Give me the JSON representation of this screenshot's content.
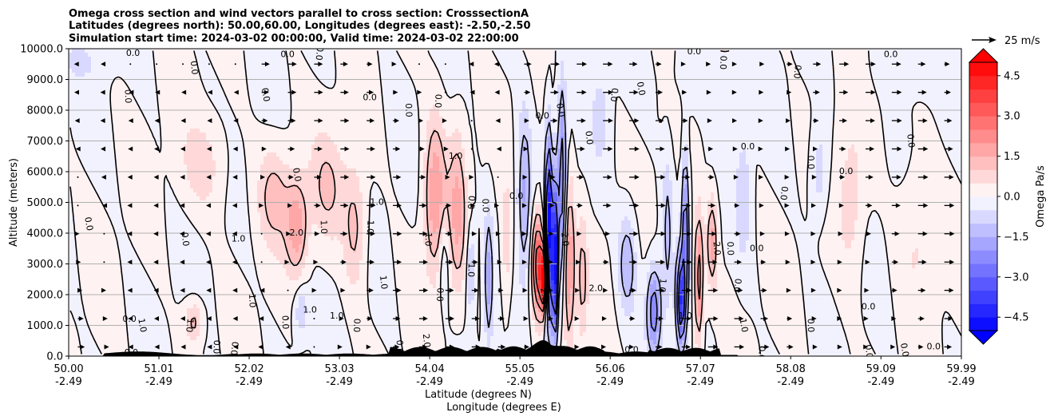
{
  "chart_data": {
    "type": "heatmap",
    "title_lines": [
      "Omega cross section and wind vectors parallel to cross section: CrosssectionA",
      "Latitudes (degrees north): 50.00,60.00, Longitudes (degrees east): -2.50,-2.50",
      "Simulation start time: 2024-03-02 00:00:00, Valid time: 2024-03-02 22:00:00"
    ],
    "ylabel": "Altitude (meters)",
    "xlabel_line1": "Latitude (degrees N)",
    "xlabel_line2": "Longitude (degrees E)",
    "xlim": [
      50.0,
      59.99
    ],
    "ylim": [
      0,
      10000
    ],
    "grid": "horizontal",
    "x_ticks": [
      {
        "lat": 50.0,
        "label1": "50.00",
        "label2": "-2.49"
      },
      {
        "lat": 51.01,
        "label1": "51.01",
        "label2": "-2.49"
      },
      {
        "lat": 52.02,
        "label1": "52.02",
        "label2": "-2.49"
      },
      {
        "lat": 53.03,
        "label1": "53.03",
        "label2": "-2.49"
      },
      {
        "lat": 54.04,
        "label1": "54.04",
        "label2": "-2.49"
      },
      {
        "lat": 55.05,
        "label1": "55.05",
        "label2": "-2.49"
      },
      {
        "lat": 56.06,
        "label1": "56.06",
        "label2": "-2.49"
      },
      {
        "lat": 57.07,
        "label1": "57.07",
        "label2": "-2.49"
      },
      {
        "lat": 58.08,
        "label1": "58.08",
        "label2": "-2.49"
      },
      {
        "lat": 59.09,
        "label1": "59.09",
        "label2": "-2.49"
      },
      {
        "lat": 59.99,
        "label1": "59.99",
        "label2": "-2.49"
      }
    ],
    "y_ticks": [
      {
        "value": 0,
        "label": "0.0"
      },
      {
        "value": 1000,
        "label": "1000.0"
      },
      {
        "value": 2000,
        "label": "2000.0"
      },
      {
        "value": 3000,
        "label": "3000.0"
      },
      {
        "value": 4000,
        "label": "4000.0"
      },
      {
        "value": 5000,
        "label": "5000.0"
      },
      {
        "value": 6000,
        "label": "6000.0"
      },
      {
        "value": 7000,
        "label": "7000.0"
      },
      {
        "value": 8000,
        "label": "8000.0"
      },
      {
        "value": 9000,
        "label": "9000.0"
      },
      {
        "value": 10000,
        "label": "10000.0"
      }
    ],
    "colorbar": {
      "label": "Omega Pa/s",
      "range": [
        -5,
        5
      ],
      "step": 0.5,
      "extend": "both",
      "cmap": "bwr",
      "ticks": [
        {
          "value": 4.5,
          "label": "4.5"
        },
        {
          "value": 3.0,
          "label": "3.0"
        },
        {
          "value": 1.5,
          "label": "1.5"
        },
        {
          "value": 0.0,
          "label": "0.0"
        },
        {
          "value": -1.5,
          "label": "−1.5"
        },
        {
          "value": -3.0,
          "label": "−3.0"
        },
        {
          "value": -4.5,
          "label": "−4.5"
        }
      ]
    },
    "quiver_key": {
      "label": "25 m/s",
      "speed": 25
    },
    "omega_features": [
      {
        "lat": 52.3,
        "alt": 5200,
        "value": 1.2,
        "lat_width": 0.18,
        "alt_width": 1600
      },
      {
        "lat": 52.55,
        "alt": 4200,
        "value": 1.8,
        "lat_width": 0.12,
        "alt_width": 1500
      },
      {
        "lat": 52.9,
        "alt": 5500,
        "value": 1.0,
        "lat_width": 0.2,
        "alt_width": 1800
      },
      {
        "lat": 51.5,
        "alt": 6200,
        "value": 0.8,
        "lat_width": 0.25,
        "alt_width": 1500
      },
      {
        "lat": 51.4,
        "alt": 1100,
        "value": 1.2,
        "lat_width": 0.1,
        "alt_width": 700
      },
      {
        "lat": 52.6,
        "alt": 1500,
        "value": -1.0,
        "lat_width": 0.08,
        "alt_width": 800
      },
      {
        "lat": 53.2,
        "alt": 4200,
        "value": 1.2,
        "lat_width": 0.12,
        "alt_width": 2000
      },
      {
        "lat": 54.1,
        "alt": 5200,
        "value": 2.0,
        "lat_width": 0.12,
        "alt_width": 2500
      },
      {
        "lat": 54.35,
        "alt": 4800,
        "value": 1.6,
        "lat_width": 0.1,
        "alt_width": 2500
      },
      {
        "lat": 54.2,
        "alt": 3200,
        "value": -0.9,
        "lat_width": 0.06,
        "alt_width": 1400
      },
      {
        "lat": 54.5,
        "alt": 2800,
        "value": -1.2,
        "lat_width": 0.05,
        "alt_width": 1500
      },
      {
        "lat": 54.7,
        "alt": 2500,
        "value": -1.7,
        "lat_width": 0.05,
        "alt_width": 2200
      },
      {
        "lat": 54.9,
        "alt": 3500,
        "value": 0.8,
        "lat_width": 0.06,
        "alt_width": 2200
      },
      {
        "lat": 55.1,
        "alt": 5200,
        "value": -1.6,
        "lat_width": 0.08,
        "alt_width": 2800
      },
      {
        "lat": 55.25,
        "alt": 3000,
        "value": 3.5,
        "lat_width": 0.07,
        "alt_width": 1600
      },
      {
        "lat": 55.32,
        "alt": 2500,
        "value": 4.8,
        "lat_width": 0.04,
        "alt_width": 1000
      },
      {
        "lat": 55.37,
        "alt": 4000,
        "value": -4.8,
        "lat_width": 0.04,
        "alt_width": 3000
      },
      {
        "lat": 55.44,
        "alt": 3000,
        "value": -5.0,
        "lat_width": 0.035,
        "alt_width": 2500
      },
      {
        "lat": 55.52,
        "alt": 5800,
        "value": -2.5,
        "lat_width": 0.05,
        "alt_width": 3000
      },
      {
        "lat": 55.6,
        "alt": 3000,
        "value": 2.2,
        "lat_width": 0.06,
        "alt_width": 2500
      },
      {
        "lat": 55.75,
        "alt": 2500,
        "value": 1.2,
        "lat_width": 0.06,
        "alt_width": 2000
      },
      {
        "lat": 55.95,
        "alt": 7800,
        "value": -0.7,
        "lat_width": 0.1,
        "alt_width": 1500
      },
      {
        "lat": 56.25,
        "alt": 3000,
        "value": -1.5,
        "lat_width": 0.1,
        "alt_width": 1600
      },
      {
        "lat": 56.55,
        "alt": 1500,
        "value": -2.5,
        "lat_width": 0.08,
        "alt_width": 1400
      },
      {
        "lat": 56.7,
        "alt": 4000,
        "value": -1.2,
        "lat_width": 0.06,
        "alt_width": 2500
      },
      {
        "lat": 56.85,
        "alt": 1800,
        "value": -3.8,
        "lat_width": 0.05,
        "alt_width": 1500
      },
      {
        "lat": 56.9,
        "alt": 4200,
        "value": -2.5,
        "lat_width": 0.04,
        "alt_width": 2500
      },
      {
        "lat": 57.05,
        "alt": 2500,
        "value": 2.5,
        "lat_width": 0.05,
        "alt_width": 2000
      },
      {
        "lat": 57.2,
        "alt": 3700,
        "value": 1.7,
        "lat_width": 0.06,
        "alt_width": 1500
      },
      {
        "lat": 57.55,
        "alt": 5200,
        "value": -0.9,
        "lat_width": 0.08,
        "alt_width": 2000
      },
      {
        "lat": 58.4,
        "alt": 6000,
        "value": -0.9,
        "lat_width": 0.1,
        "alt_width": 1500
      },
      {
        "lat": 58.75,
        "alt": 5000,
        "value": 0.8,
        "lat_width": 0.15,
        "alt_width": 2500
      },
      {
        "lat": 59.5,
        "alt": 4000,
        "value": 0.6,
        "lat_width": 0.2,
        "alt_width": 2500
      },
      {
        "lat": 50.1,
        "alt": 9600,
        "value": -0.5,
        "lat_width": 0.3,
        "alt_width": 700
      },
      {
        "lat": 59.5,
        "alt": 9300,
        "value": -0.4,
        "lat_width": 0.4,
        "alt_width": 800
      },
      {
        "lat": 57.2,
        "alt": 9000,
        "value": -0.5,
        "lat_width": 0.4,
        "alt_width": 1000
      }
    ],
    "contour_labels": [
      {
        "text": "0.0",
        "lat": 50.72,
        "alt": 9850
      },
      {
        "text": "0.0",
        "lat": 51.4,
        "alt": 9380
      },
      {
        "text": "0.0",
        "lat": 50.66,
        "alt": 8450
      },
      {
        "text": "0.0",
        "lat": 52.45,
        "alt": 9800
      },
      {
        "text": "0.0",
        "lat": 52.8,
        "alt": 9850
      },
      {
        "text": "0.0",
        "lat": 52.2,
        "alt": 8500
      },
      {
        "text": "0.0",
        "lat": 53.37,
        "alt": 8400
      },
      {
        "text": "0.0",
        "lat": 53.8,
        "alt": 8000
      },
      {
        "text": "0.0",
        "lat": 54.13,
        "alt": 8300
      },
      {
        "text": "1.0",
        "lat": 54.33,
        "alt": 6500
      },
      {
        "text": "0.0",
        "lat": 55.5,
        "alt": 8000
      },
      {
        "text": "0.0",
        "lat": 55.82,
        "alt": 7100
      },
      {
        "text": "0.0",
        "lat": 57.0,
        "alt": 9900
      },
      {
        "text": "0.0",
        "lat": 57.32,
        "alt": 9550
      },
      {
        "text": "0.0",
        "lat": 58.15,
        "alt": 9250
      },
      {
        "text": "0.0",
        "lat": 59.2,
        "alt": 9800
      },
      {
        "text": "0.0",
        "lat": 59.42,
        "alt": 7000
      },
      {
        "text": "0.0",
        "lat": 58.3,
        "alt": 6300
      },
      {
        "text": "0.0",
        "lat": 58.7,
        "alt": 6000
      },
      {
        "text": "0.0",
        "lat": 58.0,
        "alt": 5300
      },
      {
        "text": "0.0",
        "lat": 52.55,
        "alt": 5900
      },
      {
        "text": "2.0",
        "lat": 52.55,
        "alt": 4000
      },
      {
        "text": "1.0",
        "lat": 52.85,
        "alt": 4200
      },
      {
        "text": "1.0",
        "lat": 53.37,
        "alt": 4200
      },
      {
        "text": "1.0",
        "lat": 53.45,
        "alt": 5000
      },
      {
        "text": "0.0",
        "lat": 50.22,
        "alt": 4300
      },
      {
        "text": "0.0",
        "lat": 51.3,
        "alt": 3800
      },
      {
        "text": "1.0",
        "lat": 51.9,
        "alt": 3800
      },
      {
        "text": "1.0",
        "lat": 54.02,
        "alt": 3800
      },
      {
        "text": "0.0",
        "lat": 54.5,
        "alt": 5000
      },
      {
        "text": "0.0",
        "lat": 55.01,
        "alt": 5200
      },
      {
        "text": "1.0",
        "lat": 53.52,
        "alt": 2400
      },
      {
        "text": "1.0",
        "lat": 52.05,
        "alt": 1800
      },
      {
        "text": "1.0",
        "lat": 53.0,
        "alt": 1300
      },
      {
        "text": "1.0",
        "lat": 51.35,
        "alt": 1000
      },
      {
        "text": "1.0",
        "lat": 50.82,
        "alt": 1000
      },
      {
        "text": "0.0",
        "lat": 50.68,
        "alt": 1200
      },
      {
        "text": "0.0",
        "lat": 52.42,
        "alt": 1100
      },
      {
        "text": "0.0",
        "lat": 53.22,
        "alt": 1000
      },
      {
        "text": "1.0",
        "lat": 52.7,
        "alt": 1500
      },
      {
        "text": "2.0",
        "lat": 55.32,
        "alt": 2000
      },
      {
        "text": "2.0",
        "lat": 55.55,
        "alt": 3800
      },
      {
        "text": "2.0",
        "lat": 55.9,
        "alt": 2200
      },
      {
        "text": "1.0",
        "lat": 54.5,
        "alt": 2800
      },
      {
        "text": "1.0",
        "lat": 56.64,
        "alt": 2300
      },
      {
        "text": "1.0",
        "lat": 56.9,
        "alt": 1300
      },
      {
        "text": "2.0",
        "lat": 57.25,
        "alt": 3500
      },
      {
        "text": "0.0",
        "lat": 57.4,
        "alt": 3500
      },
      {
        "text": "0.0",
        "lat": 57.7,
        "alt": 3500
      },
      {
        "text": "0.0",
        "lat": 57.48,
        "alt": 2300
      },
      {
        "text": "1.0",
        "lat": 57.55,
        "alt": 1000
      },
      {
        "text": "0.0",
        "lat": 58.95,
        "alt": 1600
      },
      {
        "text": "0.0",
        "lat": 58.3,
        "alt": 1000
      },
      {
        "text": "0.0",
        "lat": 57.75,
        "alt": 100
      },
      {
        "text": "0.0",
        "lat": 59.68,
        "alt": 300
      },
      {
        "text": "0.0",
        "lat": 59.35,
        "alt": 200
      },
      {
        "text": "0.0",
        "lat": 58.95,
        "alt": 150
      },
      {
        "text": "0.0",
        "lat": 56.3,
        "alt": 200
      },
      {
        "text": "0.0",
        "lat": 51.65,
        "alt": 300
      },
      {
        "text": "0.0",
        "lat": 51.85,
        "alt": 250
      },
      {
        "text": "0.0",
        "lat": 50.7,
        "alt": 100
      },
      {
        "text": "2.0",
        "lat": 54.0,
        "alt": 500
      },
      {
        "text": "0.0",
        "lat": 53.7,
        "alt": 300
      },
      {
        "text": "0.0",
        "lat": 55.3,
        "alt": 7800
      },
      {
        "text": "0.0",
        "lat": 56.1,
        "alt": 8500
      },
      {
        "text": "0.0",
        "lat": 56.4,
        "alt": 8700
      },
      {
        "text": "0.0",
        "lat": 57.6,
        "alt": 6800
      },
      {
        "text": "0.0",
        "lat": 54.66,
        "alt": 4900
      },
      {
        "text": "0.0",
        "lat": 54.15,
        "alt": 2000
      }
    ]
  }
}
